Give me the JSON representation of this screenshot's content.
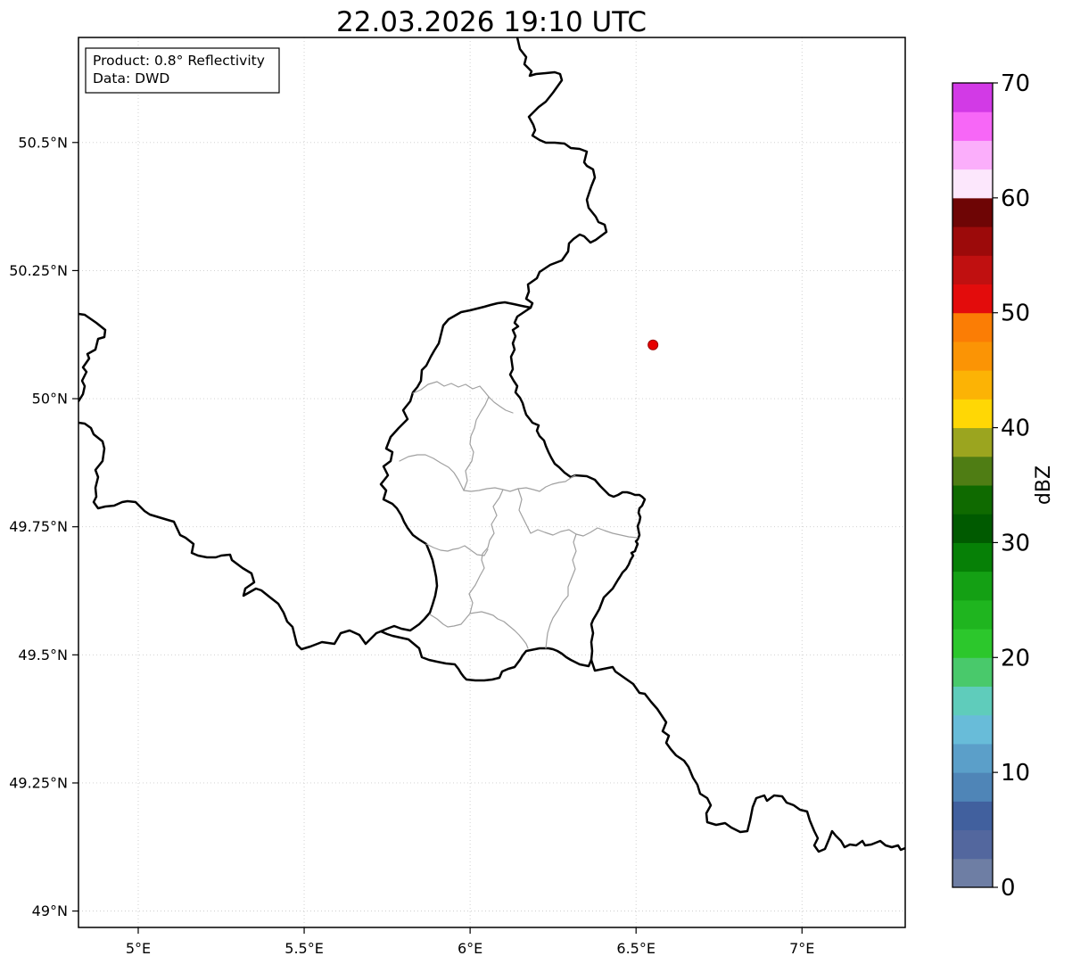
{
  "figure": {
    "title": "22.03.2026 19:10 UTC"
  },
  "info_box": {
    "line1": "Product: 0.8° Reflectivity",
    "line2": "Data: DWD"
  },
  "axes": {
    "lon_min": 4.82,
    "lon_max": 7.311,
    "lat_min": 48.968,
    "lat_max": 50.705,
    "x_ticks": [
      {
        "lon": 5.0,
        "label": "5°E"
      },
      {
        "lon": 5.5,
        "label": "5.5°E"
      },
      {
        "lon": 6.0,
        "label": "6°E"
      },
      {
        "lon": 6.5,
        "label": "6.5°E"
      },
      {
        "lon": 7.0,
        "label": "7°E"
      }
    ],
    "y_ticks": [
      {
        "lat": 50.5,
        "label": "50.5°N"
      },
      {
        "lat": 50.25,
        "label": "50.25°N"
      },
      {
        "lat": 50.0,
        "label": "50°N"
      },
      {
        "lat": 49.75,
        "label": "49.75°N"
      },
      {
        "lat": 49.5,
        "label": "49.5°N"
      },
      {
        "lat": 49.25,
        "label": "49.25°N"
      },
      {
        "lat": 49.0,
        "label": "49°N"
      }
    ]
  },
  "marker": {
    "name": "radar-site",
    "lon": 6.551,
    "lat": 50.105,
    "radius": 5.5,
    "color": "#e60000",
    "edge_color": "#990000"
  },
  "colorbar": {
    "label": "dBZ",
    "min": 0,
    "max": 70,
    "ticks": [
      {
        "value": 0,
        "label": "0"
      },
      {
        "value": 10,
        "label": "10"
      },
      {
        "value": 20,
        "label": "20"
      },
      {
        "value": 30,
        "label": "30"
      },
      {
        "value": 40,
        "label": "40"
      },
      {
        "value": 50,
        "label": "50"
      },
      {
        "value": 60,
        "label": "60"
      },
      {
        "value": 70,
        "label": "70"
      }
    ],
    "segments": [
      {
        "from": 0,
        "to": 2.5,
        "color": "#6e7ea4"
      },
      {
        "from": 2.5,
        "to": 5,
        "color": "#53679e"
      },
      {
        "from": 5,
        "to": 7.5,
        "color": "#41609e"
      },
      {
        "from": 7.5,
        "to": 10,
        "color": "#4f85b7"
      },
      {
        "from": 10,
        "to": 12.5,
        "color": "#5b9fc9"
      },
      {
        "from": 12.5,
        "to": 15,
        "color": "#68bcd9"
      },
      {
        "from": 15,
        "to": 17.5,
        "color": "#5fccbb"
      },
      {
        "from": 17.5,
        "to": 20,
        "color": "#49c96b"
      },
      {
        "from": 20,
        "to": 22.5,
        "color": "#2cc72c"
      },
      {
        "from": 22.5,
        "to": 25,
        "color": "#1fb51f"
      },
      {
        "from": 25,
        "to": 27.5,
        "color": "#14a014"
      },
      {
        "from": 27.5,
        "to": 30,
        "color": "#068006"
      },
      {
        "from": 30,
        "to": 32.5,
        "color": "#005a00"
      },
      {
        "from": 32.5,
        "to": 35,
        "color": "#0f6a00"
      },
      {
        "from": 35,
        "to": 37.5,
        "color": "#4f7d14"
      },
      {
        "from": 37.5,
        "to": 40,
        "color": "#9ba51f"
      },
      {
        "from": 40,
        "to": 42.5,
        "color": "#ffd705"
      },
      {
        "from": 42.5,
        "to": 45,
        "color": "#fcb305"
      },
      {
        "from": 45,
        "to": 47.5,
        "color": "#fb9405"
      },
      {
        "from": 47.5,
        "to": 50,
        "color": "#fb7d05"
      },
      {
        "from": 50,
        "to": 52.5,
        "color": "#e30c0c"
      },
      {
        "from": 52.5,
        "to": 55,
        "color": "#c01010"
      },
      {
        "from": 55,
        "to": 57.5,
        "color": "#9c0a0a"
      },
      {
        "from": 57.5,
        "to": 60,
        "color": "#6e0505"
      },
      {
        "from": 60,
        "to": 62.5,
        "color": "#fce7fc"
      },
      {
        "from": 62.5,
        "to": 65,
        "color": "#fbaefb"
      },
      {
        "from": 65,
        "to": 67.5,
        "color": "#f767f7"
      },
      {
        "from": 67.5,
        "to": 70,
        "color": "#d23ae6"
      }
    ]
  },
  "colors": {
    "background": "#ffffff",
    "frame": "#000000",
    "national_border": "#000000",
    "district_border": "#a0a0a0",
    "grid": "#cccccc",
    "text": "#000000"
  }
}
